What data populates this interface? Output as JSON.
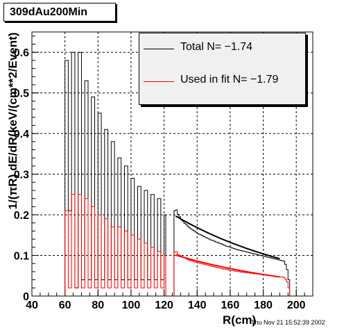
{
  "chart": {
    "title": "309dAu200Min",
    "timestamp": "Thu Nov 21 15:52:39 2002"
  },
  "legend": {
    "total_label": "Total N= −1.74",
    "fit_label": "Used in fit N= −1.79"
  },
  "colors": {
    "total": "#000000",
    "fit": "#ff0000",
    "legend_bg": "#f0f0f0"
  },
  "chart_data": {
    "type": "line",
    "title": "309dAu200Min",
    "xlabel": "R(cm)",
    "ylabel": "1/(πR) dE/dR(keV/(cm**2/Event)",
    "xlim": [
      40,
      210
    ],
    "ylim": [
      0,
      0.65
    ],
    "xticks": [
      40,
      60,
      80,
      100,
      120,
      140,
      160,
      180,
      200
    ],
    "yticks": [
      0,
      0.1,
      0.2,
      0.3,
      0.4,
      0.5,
      0.6
    ],
    "grid": true,
    "legend_position": "top-right",
    "bin_width": 1,
    "series": [
      {
        "name": "Total N= −1.74",
        "type": "histogram",
        "segments": [
          {
            "x_start": 60,
            "values": [
              0.58,
              0.58,
              0.21,
              0.21,
              0.6,
              0.6,
              0.02,
              0.02,
              0.6,
              0.6,
              0.04,
              0.04,
              0.53,
              0.53,
              0.04,
              0.04,
              0.49,
              0.49,
              0.04,
              0.04,
              0.45,
              0.45,
              0.04,
              0.04,
              0.41,
              0.41,
              0.04,
              0.04,
              0.38,
              0.38,
              0.04,
              0.04,
              0.34,
              0.34,
              0.04,
              0.04,
              0.32,
              0.32,
              0.04,
              0.04,
              0.29,
              0.29,
              0.04,
              0.04,
              0.27,
              0.27,
              0.04,
              0.04,
              0.26,
              0.26,
              0.04,
              0.04,
              0.25,
              0.25,
              0.04,
              0.04,
              0.24,
              0.24,
              0.04,
              0.04,
              0.2
            ]
          },
          {
            "x_start": 126,
            "values": [
              0.21,
              0.212,
              0.201,
              0.195,
              0.188,
              0.184,
              0.179,
              0.176,
              0.172,
              0.168,
              0.165,
              0.162,
              0.16,
              0.157,
              0.154,
              0.152,
              0.15,
              0.148,
              0.146,
              0.144,
              0.142,
              0.14,
              0.138,
              0.137,
              0.135,
              0.133,
              0.132,
              0.13,
              0.129,
              0.127,
              0.125,
              0.123,
              0.122,
              0.121,
              0.12,
              0.118,
              0.117,
              0.115,
              0.114,
              0.113,
              0.112,
              0.111,
              0.11,
              0.109,
              0.108,
              0.107,
              0.106,
              0.105,
              0.104,
              0.103,
              0.102,
              0.101,
              0.1,
              0.099,
              0.098,
              0.097,
              0.096,
              0.095,
              0.094,
              0.093,
              0.092,
              0.091,
              0.09,
              0.089,
              0.088,
              0.087,
              0.086,
              0.078,
              0.065,
              0.04
            ]
          }
        ]
      },
      {
        "name": "Used in fit N= −1.79",
        "type": "histogram",
        "segments": [
          {
            "x_start": 60,
            "values": [
              0.21,
              0.21,
              0.02,
              0.02,
              0.25,
              0.25,
              0.02,
              0.02,
              0.25,
              0.25,
              0.02,
              0.02,
              0.24,
              0.24,
              0.02,
              0.02,
              0.22,
              0.22,
              0.02,
              0.02,
              0.2,
              0.2,
              0.02,
              0.02,
              0.19,
              0.19,
              0.02,
              0.02,
              0.17,
              0.17,
              0.02,
              0.02,
              0.17,
              0.17,
              0.02,
              0.02,
              0.16,
              0.16,
              0.02,
              0.02,
              0.15,
              0.15,
              0.02,
              0.02,
              0.14,
              0.14,
              0.02,
              0.02,
              0.13,
              0.13,
              0.02,
              0.02,
              0.12,
              0.12,
              0.02,
              0.02,
              0.11,
              0.11,
              0.02,
              0.02,
              0.1
            ]
          },
          {
            "x_start": 126,
            "values": [
              0.108,
              0.109,
              0.102,
              0.1,
              0.098,
              0.096,
              0.094,
              0.092,
              0.09,
              0.088,
              0.087,
              0.086,
              0.084,
              0.083,
              0.082,
              0.081,
              0.08,
              0.079,
              0.078,
              0.077,
              0.076,
              0.075,
              0.074,
              0.073,
              0.072,
              0.071,
              0.07,
              0.069,
              0.068,
              0.067,
              0.066,
              0.066,
              0.065,
              0.064,
              0.063,
              0.063,
              0.062,
              0.061,
              0.061,
              0.06,
              0.059,
              0.059,
              0.058,
              0.058,
              0.057,
              0.057,
              0.056,
              0.056,
              0.055,
              0.055,
              0.054,
              0.054,
              0.053,
              0.053,
              0.052,
              0.052,
              0.051,
              0.051,
              0.05,
              0.05,
              0.049,
              0.049,
              0.048,
              0.048,
              0.047,
              0.047,
              0.046,
              0.042,
              0.035,
              0.02
            ]
          }
        ]
      }
    ],
    "fits": [
      {
        "name": "Total N= −1.74",
        "x_range": [
          127,
          190
        ],
        "y_at_start": 0.197,
        "y_at_end": 0.092
      },
      {
        "name": "Used in fit N= −1.79",
        "x_range": [
          127,
          190
        ],
        "y_at_start": 0.101,
        "y_at_end": 0.047
      }
    ]
  }
}
